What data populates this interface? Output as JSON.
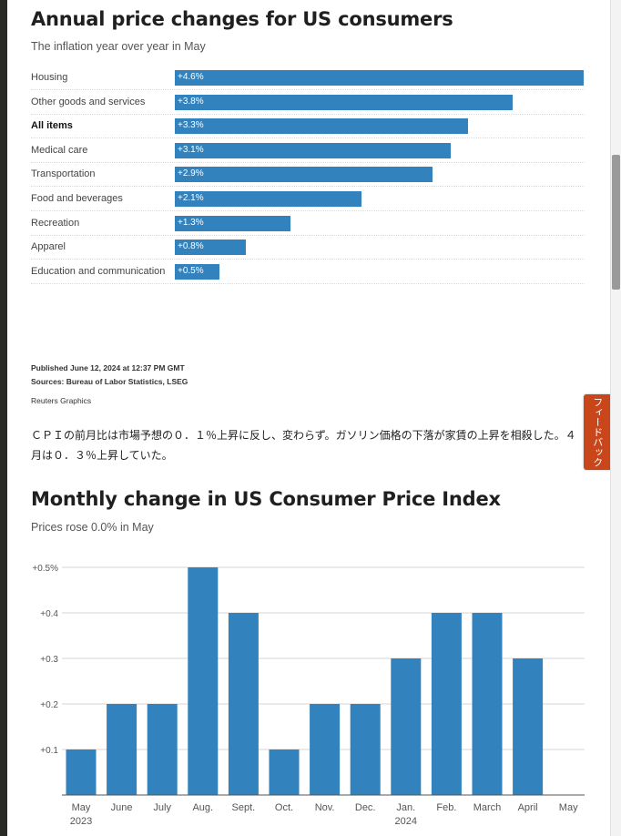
{
  "feedback": {
    "label": "フィードバック"
  },
  "annual": {
    "title": "Annual price changes for US consumers",
    "subtitle": "The inflation year over year in May",
    "published": "Published June 12, 2024 at 12:37 PM GMT",
    "sources": "Sources: Bureau of Labor Statistics, LSEG",
    "credit": "Reuters Graphics"
  },
  "article": {
    "paragraph": "ＣＰＩの前月比は市場予想の０．１％上昇に反し、変わらず。ガソリン価格の下落が家賃の上昇を相殺した。４月は０．３％上昇していた。"
  },
  "monthly": {
    "title": "Monthly change in US Consumer Price Index",
    "subtitle": "Prices rose 0.0% in May"
  },
  "chart_data": [
    {
      "type": "bar",
      "orientation": "horizontal",
      "title": "Annual price changes for US consumers",
      "subtitle": "The inflation year over year in May",
      "categories": [
        "Housing",
        "Other goods and services",
        "All items",
        "Medical care",
        "Transportation",
        "Food and beverages",
        "Recreation",
        "Apparel",
        "Education and communication"
      ],
      "values": [
        4.6,
        3.8,
        3.3,
        3.1,
        2.9,
        2.1,
        1.3,
        0.8,
        0.5
      ],
      "value_labels": [
        "+4.6%",
        "+3.8%",
        "+3.3%",
        "+3.1%",
        "+2.9%",
        "+2.1%",
        "+1.3%",
        "+0.8%",
        "+0.5%"
      ],
      "highlight": "All items",
      "bar_color": "#3182bd"
    },
    {
      "type": "bar",
      "orientation": "vertical",
      "title": "Monthly change in US Consumer Price Index",
      "subtitle": "Prices rose 0.0% in May",
      "categories": [
        "May",
        "June",
        "July",
        "Aug.",
        "Sept.",
        "Oct.",
        "Nov.",
        "Dec.",
        "Jan.",
        "Feb.",
        "March",
        "April",
        "May"
      ],
      "year_labels": [
        "2023",
        "",
        "",
        "",
        "",
        "",
        "",
        "",
        "2024",
        "",
        "",
        "",
        ""
      ],
      "values": [
        0.1,
        0.2,
        0.2,
        0.5,
        0.4,
        0.1,
        0.2,
        0.2,
        0.3,
        0.4,
        0.4,
        0.3,
        0.0
      ],
      "yticks": [
        0.1,
        0.2,
        0.3,
        0.4,
        0.5
      ],
      "ytick_labels": [
        "+0.1",
        "+0.2",
        "+0.3",
        "+0.4",
        "+0.5%"
      ],
      "ylim": [
        0,
        0.5
      ],
      "grid": true,
      "bar_color": "#3182bd"
    }
  ]
}
